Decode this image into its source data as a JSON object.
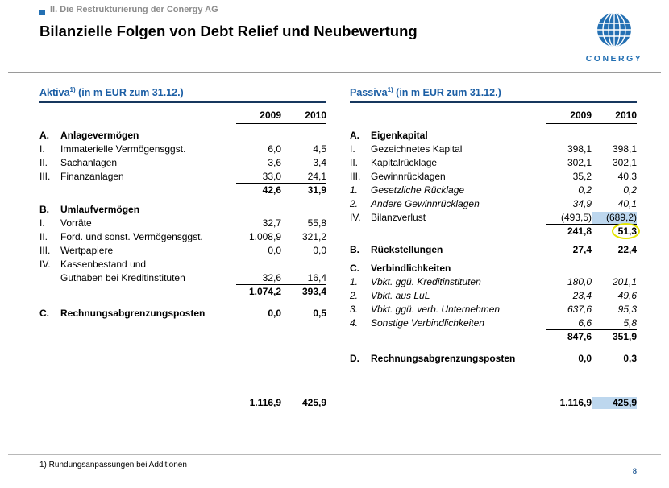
{
  "slide": {
    "kicker": "II. Die Restrukturierung der Conergy AG",
    "title": "Bilanzielle Folgen von Debt Relief und Neubewertung",
    "logo_text": "CONERGY",
    "footnote": "1) Rundungsanpassungen bei Additionen",
    "page_number": "8"
  },
  "colors": {
    "heading_blue": "#1C5FA5",
    "rule_blue": "#17375E",
    "highlight_blue": "#BDD7EE",
    "circle_yellow": "#E4E400",
    "accent": "#2470B3",
    "kicker_gray": "#8C8C8C",
    "page_num": "#31659C"
  },
  "tables": [
    {
      "id": "aktiva",
      "heading": "Aktiva",
      "heading_sup": "1)",
      "heading_rest": " (in m EUR zum 31.12.)",
      "col_headers": [
        "2009",
        "2010"
      ],
      "rows": [
        {
          "p": "A.",
          "label": "Anlagevermögen",
          "bold": true
        },
        {
          "p": "I.",
          "label": "Immaterielle Vermögensggst.",
          "v": [
            "6,0",
            "4,5"
          ]
        },
        {
          "p": "II.",
          "label": "Sachanlagen",
          "v": [
            "3,6",
            "3,4"
          ]
        },
        {
          "p": "III.",
          "label": "Finanzanlagen",
          "v": [
            "33,0",
            "24,1"
          ]
        },
        {
          "v": [
            "42,6",
            "31,9"
          ],
          "bold": true,
          "numTop": true
        },
        {
          "spacer": 7
        },
        {
          "p": "B.",
          "label": "Umlaufvermögen",
          "bold": true
        },
        {
          "p": "I.",
          "label": "Vorräte",
          "v": [
            "32,7",
            "55,8"
          ]
        },
        {
          "p": "II.",
          "label": "Ford. und sonst. Vermögensggst.",
          "v": [
            "1.008,9",
            "321,2"
          ]
        },
        {
          "p": "III.",
          "label": "Wertpapiere",
          "v": [
            "0,0",
            "0,0"
          ]
        },
        {
          "p": "IV.",
          "label": "Kassenbestand und"
        },
        {
          "label": "Guthaben bei Kreditinstituten",
          "v": [
            "32,6",
            "16,4"
          ]
        },
        {
          "v": [
            "1.074,2",
            "393,4"
          ],
          "bold": true,
          "numTop": true
        },
        {
          "spacer": 10
        },
        {
          "p": "C.",
          "label": "Rechnungsabgrenzungsposten",
          "bold": true,
          "v": [
            "0,0",
            "0,5"
          ]
        },
        {
          "v": [
            "1.116,9",
            "425,9"
          ],
          "bold": true,
          "lineTop": true,
          "lineBottom": true,
          "total": true
        }
      ]
    },
    {
      "id": "passiva",
      "heading": "Passiva",
      "heading_sup": "1)",
      "heading_rest": " (in m EUR zum 31.12.)",
      "col_headers": [
        "2009",
        "2010"
      ],
      "rows": [
        {
          "p": "A.",
          "label": "Eigenkapital",
          "bold": true
        },
        {
          "p": "I.",
          "label": "Gezeichnetes Kapital",
          "v": [
            "398,1",
            "398,1"
          ]
        },
        {
          "p": "II.",
          "label": "Kapitalrücklage",
          "v": [
            "302,1",
            "302,1"
          ]
        },
        {
          "p": "III.",
          "label": "Gewinnrücklagen",
          "v": [
            "35,2",
            "40,3"
          ]
        },
        {
          "p": "1.",
          "label": "Gesetzliche Rücklage",
          "italic": true,
          "v": [
            "0,2",
            "0,2"
          ]
        },
        {
          "p": "2.",
          "label": "Andere Gewinnrücklagen",
          "italic": true,
          "v": [
            "34,9",
            "40,1"
          ]
        },
        {
          "p": "IV.",
          "label": "Bilanzverlust",
          "v": [
            "(493,5)",
            "(689,2)"
          ],
          "hl": [
            1
          ]
        },
        {
          "v": [
            "241,8",
            "51,3"
          ],
          "bold": true,
          "numTop": true,
          "circle": [
            1
          ]
        },
        {
          "spacer": 6
        },
        {
          "p": "B.",
          "label": "Rückstellungen",
          "bold": true,
          "v": [
            "27,4",
            "22,4"
          ]
        },
        {
          "spacer": 6
        },
        {
          "p": "C.",
          "label": "Verbindlichkeiten",
          "bold": true
        },
        {
          "p": "1.",
          "label": "Vbkt. ggü. Kreditinstituten",
          "italic": true,
          "v": [
            "180,0",
            "201,1"
          ]
        },
        {
          "p": "2.",
          "label": "Vbkt. aus LuL",
          "italic": true,
          "v": [
            "23,4",
            "49,6"
          ]
        },
        {
          "p": "3.",
          "label": "Vbkt. ggü. verb. Unternehmen",
          "italic": true,
          "v": [
            "637,6",
            "95,3"
          ]
        },
        {
          "p": "4.",
          "label": "Sonstige Verbindlichkeiten",
          "italic": true,
          "v": [
            "6,6",
            "5,8"
          ]
        },
        {
          "v": [
            "847,6",
            "351,9"
          ],
          "bold": true,
          "numTop": true
        },
        {
          "spacer": 10
        },
        {
          "p": "D.",
          "label": "Rechnungsabgrenzungsposten",
          "bold": true,
          "v": [
            "0,0",
            "0,3"
          ]
        },
        {
          "v": [
            "1.116,9",
            "425,9"
          ],
          "bold": true,
          "lineTop": true,
          "lineBottom": true,
          "total": true,
          "hl": [
            1
          ]
        }
      ]
    }
  ]
}
